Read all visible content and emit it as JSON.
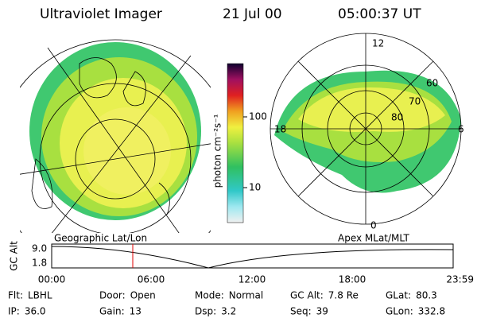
{
  "header": {
    "title": "Ultraviolet Imager",
    "date": "21 Jul 00",
    "time": "05:00:37 UT"
  },
  "colorbar": {
    "unit": "photon cm⁻²s⁻¹",
    "labels": [
      "100",
      "10"
    ]
  },
  "left_panel": {
    "label": "Geographic Lat/Lon"
  },
  "right_panel": {
    "label": "Apex MLat/MLT",
    "mlt_labels": [
      "12",
      "18",
      "6",
      "0"
    ],
    "mlat_labels": [
      "60",
      "70",
      "80"
    ]
  },
  "timeline": {
    "axis_label": "GC Alt",
    "y_labels": [
      "9.0",
      "1.8"
    ],
    "x_labels": [
      "00:00",
      "06:00",
      "12:00",
      "18:00",
      "23:59"
    ]
  },
  "footer": {
    "rows": [
      [
        {
          "label": "Flt:",
          "value": "LBHL"
        },
        {
          "label": "Door:",
          "value": "Open"
        },
        {
          "label": "Mode:",
          "value": "Normal"
        },
        {
          "label": "GC Alt:",
          "value": "7.8 Re"
        },
        {
          "label": "GLat:",
          "value": "80.3"
        }
      ],
      [
        {
          "label": "IP:",
          "value": "36.0"
        },
        {
          "label": "Gain:",
          "value": "13"
        },
        {
          "label": "Dsp:",
          "value": "3.2"
        },
        {
          "label": "Seq:",
          "value": "39"
        },
        {
          "label": "GLon:",
          "value": "332.8"
        }
      ]
    ]
  }
}
